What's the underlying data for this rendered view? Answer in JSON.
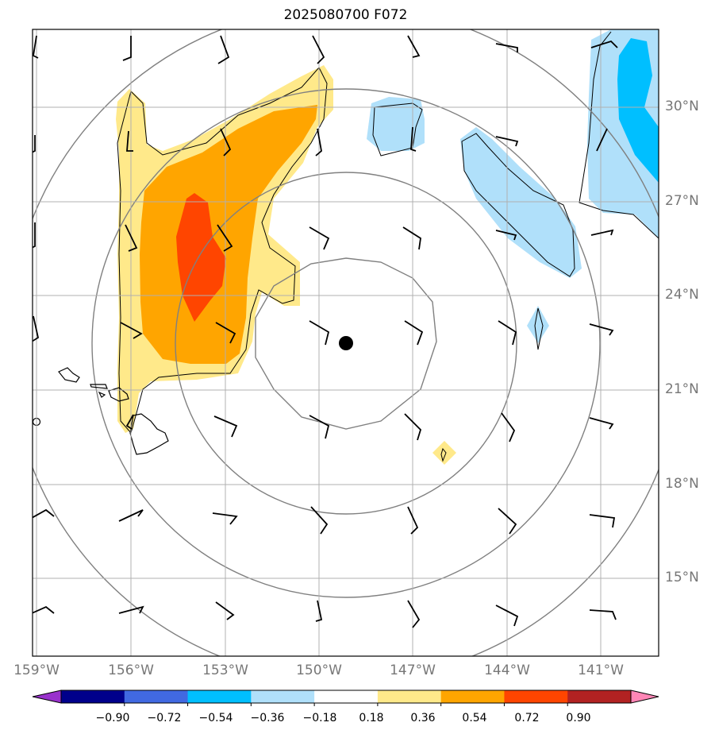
{
  "title": "2025080700 F072",
  "map": {
    "lat_labels": [
      "30°N",
      "27°N",
      "24°N",
      "21°N",
      "18°N",
      "15°N"
    ],
    "lon_labels": [
      "159°W",
      "156°W",
      "153°W",
      "150°W",
      "147°W",
      "144°W",
      "141°W"
    ],
    "storm_center": {
      "lat": 22.5,
      "lon": -149.1
    },
    "range_rings": "concentric rings around storm center"
  },
  "colorbar": {
    "labels": [
      "−0.90",
      "−0.72",
      "−0.54",
      "−0.36",
      "−0.18",
      "0.18",
      "0.36",
      "0.54",
      "0.72",
      "0.90"
    ],
    "colors": [
      "#9932cc",
      "#00008b",
      "#4169e1",
      "#00bfff",
      "#b0e0fa",
      "#ffffff",
      "#ffe98a",
      "#ffa500",
      "#ff4500",
      "#b22222",
      "#ff86b6"
    ]
  }
}
